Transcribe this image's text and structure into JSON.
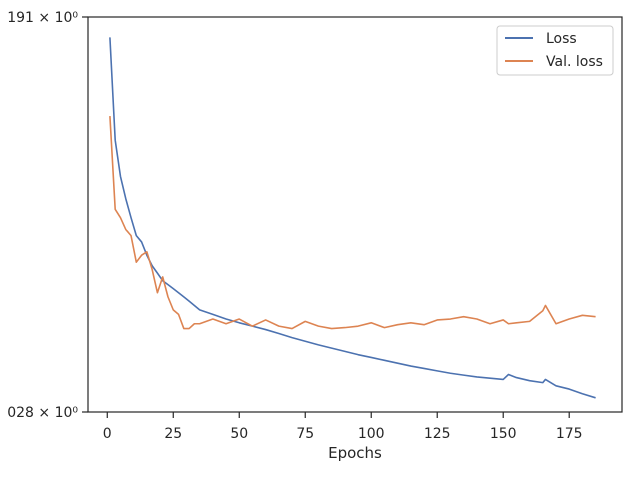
{
  "chart_data": {
    "type": "line",
    "title": "",
    "xlabel": "Epochs",
    "ylabel": "",
    "yscale": "log",
    "ytick_labels": [
      "191 × 10⁰",
      "028 × 10⁰"
    ],
    "yticks": [
      0.191,
      0.028
    ],
    "xlim": [
      -7.3,
      195
    ],
    "ylim": [
      0.028,
      0.191
    ],
    "xticks": [
      0,
      25,
      50,
      75,
      100,
      125,
      150,
      175
    ],
    "grid": false,
    "legend_position": "top-right",
    "colors": {
      "Loss": "#4c72b0",
      "Val. loss": "#dd8452"
    },
    "x": [
      1,
      3,
      5,
      7,
      9,
      11,
      13,
      15,
      17,
      19,
      21,
      23,
      25,
      27,
      29,
      31,
      33,
      35,
      40,
      45,
      50,
      55,
      60,
      65,
      70,
      75,
      80,
      85,
      90,
      95,
      100,
      105,
      110,
      115,
      120,
      125,
      130,
      135,
      140,
      145,
      150,
      152,
      155,
      160,
      165,
      166,
      170,
      175,
      180,
      185
    ],
    "series": [
      {
        "name": "Loss",
        "values": [
          0.173,
          0.105,
          0.088,
          0.079,
          0.072,
          0.066,
          0.064,
          0.06,
          0.057,
          0.055,
          0.053,
          0.052,
          0.051,
          0.05,
          0.049,
          0.048,
          0.047,
          0.046,
          0.045,
          0.044,
          0.0432,
          0.0425,
          0.0418,
          0.041,
          0.0402,
          0.0395,
          0.0388,
          0.0382,
          0.0376,
          0.037,
          0.0365,
          0.036,
          0.0355,
          0.035,
          0.0346,
          0.0342,
          0.0338,
          0.0335,
          0.0332,
          0.033,
          0.0328,
          0.0336,
          0.0331,
          0.0326,
          0.0323,
          0.0328,
          0.0318,
          0.0313,
          0.0306,
          0.03
        ]
      },
      {
        "name": "Val. loss",
        "values": [
          0.118,
          0.075,
          0.072,
          0.068,
          0.066,
          0.058,
          0.06,
          0.061,
          0.056,
          0.05,
          0.054,
          0.049,
          0.046,
          0.045,
          0.042,
          0.042,
          0.043,
          0.043,
          0.044,
          0.043,
          0.044,
          0.0425,
          0.0438,
          0.0425,
          0.042,
          0.0435,
          0.0425,
          0.042,
          0.0422,
          0.0425,
          0.0432,
          0.0422,
          0.0428,
          0.0432,
          0.0428,
          0.0438,
          0.044,
          0.0445,
          0.044,
          0.043,
          0.0438,
          0.043,
          0.0432,
          0.0435,
          0.0458,
          0.047,
          0.043,
          0.044,
          0.0448,
          0.0445
        ]
      }
    ]
  }
}
